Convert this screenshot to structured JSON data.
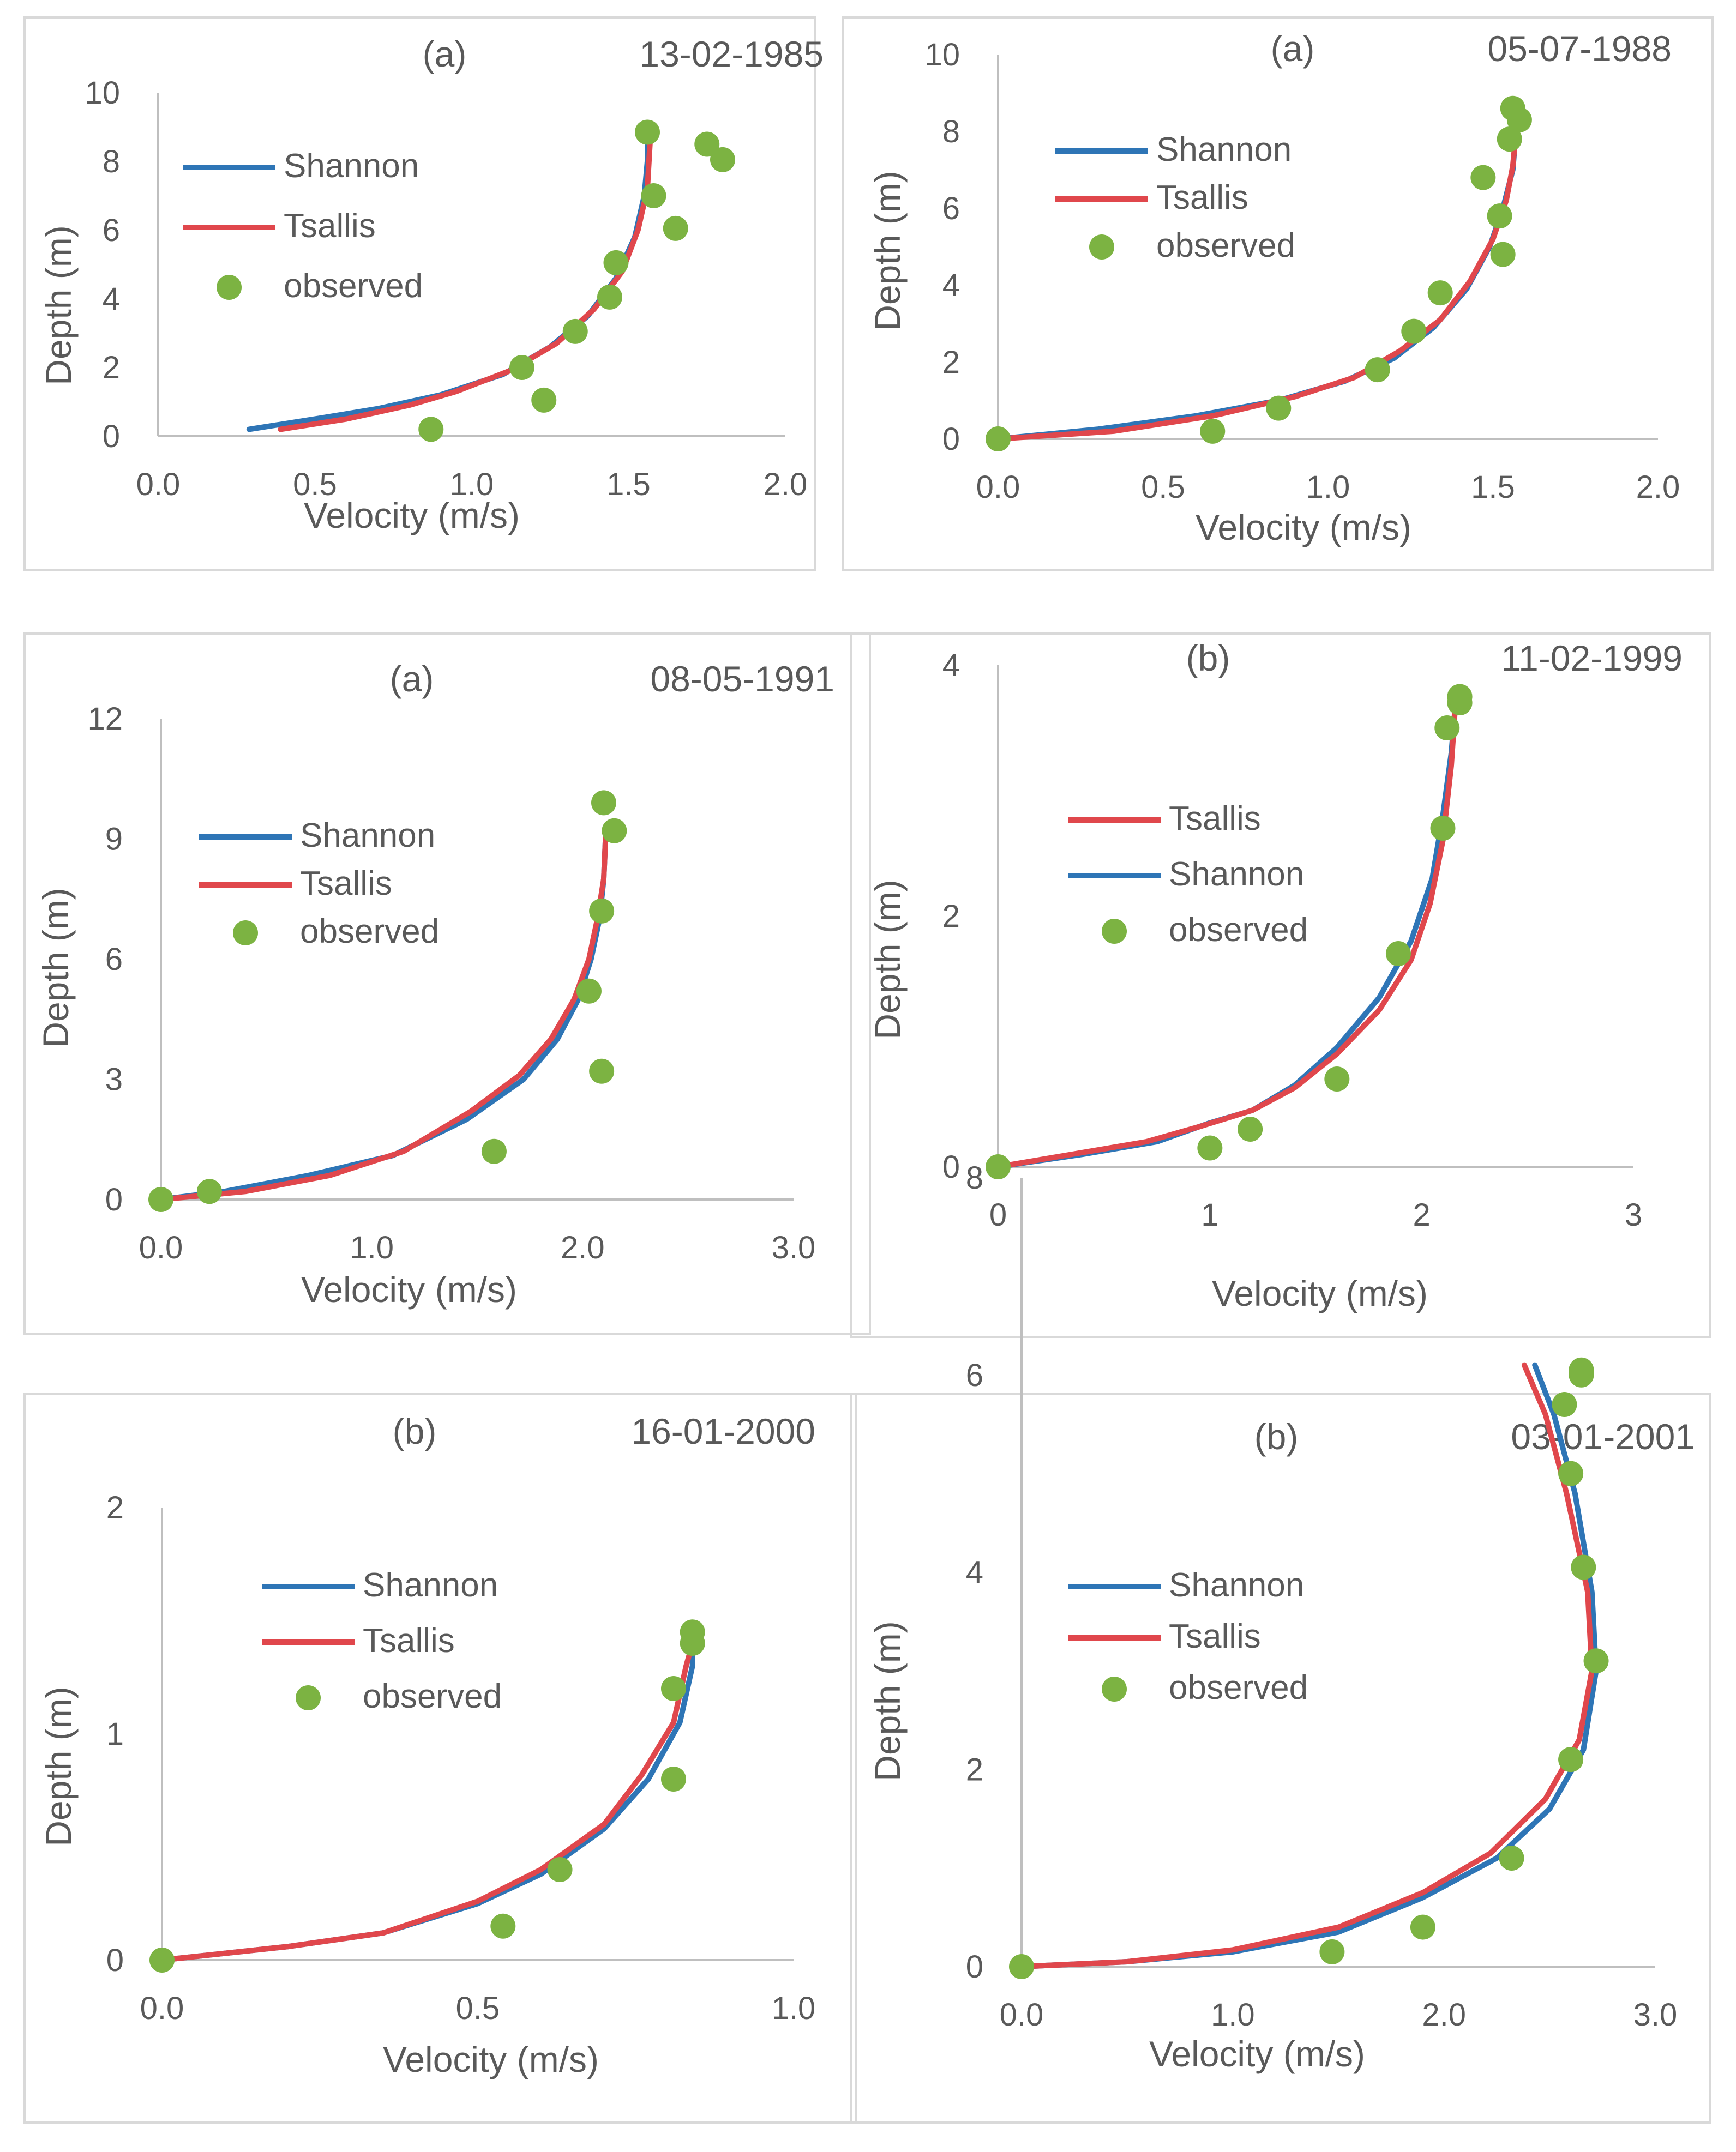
{
  "figure": {
    "colors": {
      "shannon": "#2E75B6",
      "tsallis": "#E0474C",
      "observed": "#7CB342",
      "axis": "#BFBFBF",
      "text": "#595959",
      "border": "#D9D9D9"
    }
  },
  "chart_data": [
    {
      "type": "line",
      "panel_label": "(a)",
      "date": "13-02-1985",
      "xlabel": "Velocity (m/s)",
      "ylabel": "Depth (m)",
      "xlim": [
        0,
        2
      ],
      "ylim": [
        0,
        10
      ],
      "xticks": [
        "0.0",
        "0.5",
        "1.0",
        "1.5",
        "2.0"
      ],
      "yticks": [
        "0",
        "2",
        "4",
        "6",
        "8",
        "10"
      ],
      "legend": [
        "Shannon",
        "Tsallis",
        "observed"
      ],
      "series": [
        {
          "name": "Shannon",
          "key": "shannon",
          "points": [
            [
              0.29,
              0.2
            ],
            [
              0.5,
              0.5
            ],
            [
              0.7,
              0.8
            ],
            [
              0.9,
              1.2
            ],
            [
              1.1,
              1.8
            ],
            [
              1.25,
              2.6
            ],
            [
              1.37,
              3.5
            ],
            [
              1.46,
              4.6
            ],
            [
              1.52,
              5.8
            ],
            [
              1.55,
              7.0
            ],
            [
              1.56,
              8.0
            ],
            [
              1.56,
              8.8
            ]
          ]
        },
        {
          "name": "Tsallis",
          "key": "tsallis",
          "points": [
            [
              0.39,
              0.2
            ],
            [
              0.6,
              0.5
            ],
            [
              0.8,
              0.9
            ],
            [
              0.95,
              1.3
            ],
            [
              1.12,
              1.9
            ],
            [
              1.27,
              2.7
            ],
            [
              1.39,
              3.7
            ],
            [
              1.48,
              4.8
            ],
            [
              1.53,
              6.0
            ],
            [
              1.56,
              7.2
            ],
            [
              1.57,
              8.8
            ]
          ]
        }
      ],
      "observed": [
        [
          0.87,
          0.2
        ],
        [
          1.23,
          1.05
        ],
        [
          1.16,
          2.0
        ],
        [
          1.33,
          3.05
        ],
        [
          1.44,
          4.05
        ],
        [
          1.46,
          5.05
        ],
        [
          1.58,
          7.0
        ],
        [
          1.65,
          6.05
        ],
        [
          1.56,
          8.85
        ],
        [
          1.75,
          8.5
        ],
        [
          1.8,
          8.05
        ]
      ]
    },
    {
      "type": "line",
      "panel_label": "(a)",
      "date": "05-07-1988",
      "xlabel": "Velocity (m/s)",
      "ylabel": "Depth (m)",
      "xlim": [
        0,
        2
      ],
      "ylim": [
        0,
        10
      ],
      "xticks": [
        "0.0",
        "0.5",
        "1.0",
        "1.5",
        "2.0"
      ],
      "yticks": [
        "0",
        "2",
        "4",
        "6",
        "8",
        "10"
      ],
      "legend": [
        "Shannon",
        "Tsallis",
        "observed"
      ],
      "series": [
        {
          "name": "Shannon",
          "key": "shannon",
          "points": [
            [
              0,
              0
            ],
            [
              0.3,
              0.25
            ],
            [
              0.6,
              0.6
            ],
            [
              0.85,
              1.0
            ],
            [
              1.05,
              1.5
            ],
            [
              1.2,
              2.1
            ],
            [
              1.32,
              2.9
            ],
            [
              1.42,
              3.9
            ],
            [
              1.49,
              5.0
            ],
            [
              1.53,
              6.0
            ],
            [
              1.56,
              7.0
            ],
            [
              1.57,
              8.0
            ],
            [
              1.58,
              8.5
            ]
          ]
        },
        {
          "name": "Tsallis",
          "key": "tsallis",
          "points": [
            [
              0,
              0
            ],
            [
              0.35,
              0.2
            ],
            [
              0.65,
              0.6
            ],
            [
              0.9,
              1.1
            ],
            [
              1.08,
              1.6
            ],
            [
              1.22,
              2.3
            ],
            [
              1.34,
              3.1
            ],
            [
              1.43,
              4.1
            ],
            [
              1.5,
              5.2
            ],
            [
              1.54,
              6.2
            ],
            [
              1.56,
              7.1
            ],
            [
              1.57,
              8.0
            ],
            [
              1.58,
              8.5
            ]
          ]
        }
      ],
      "observed": [
        [
          0,
          0
        ],
        [
          0.65,
          0.2
        ],
        [
          0.85,
          0.8
        ],
        [
          1.15,
          1.8
        ],
        [
          1.26,
          2.8
        ],
        [
          1.34,
          3.8
        ],
        [
          1.47,
          6.8
        ],
        [
          1.52,
          5.8
        ],
        [
          1.53,
          4.8
        ],
        [
          1.55,
          7.8
        ],
        [
          1.58,
          8.3
        ],
        [
          1.56,
          8.6
        ]
      ]
    },
    {
      "type": "line",
      "panel_label": "(a)",
      "date": "08-05-1991",
      "xlabel": "Velocity (m/s)",
      "ylabel": "Depth (m)",
      "xlim": [
        0,
        3
      ],
      "ylim": [
        0,
        12
      ],
      "xticks": [
        "0.0",
        "1.0",
        "2.0",
        "3.0"
      ],
      "yticks": [
        "0",
        "3",
        "6",
        "9",
        "12"
      ],
      "legend": [
        "Shannon",
        "Tsallis",
        "observed"
      ],
      "series": [
        {
          "name": "Shannon",
          "key": "shannon",
          "points": [
            [
              0,
              0
            ],
            [
              0.3,
              0.2
            ],
            [
              0.7,
              0.6
            ],
            [
              1.1,
              1.1
            ],
            [
              1.45,
              2.0
            ],
            [
              1.72,
              3.0
            ],
            [
              1.88,
              4.0
            ],
            [
              1.98,
              5.0
            ],
            [
              2.04,
              6.0
            ],
            [
              2.08,
              7.0
            ],
            [
              2.1,
              8.0
            ],
            [
              2.11,
              9.2
            ]
          ]
        },
        {
          "name": "Tsallis",
          "key": "tsallis",
          "points": [
            [
              0,
              0
            ],
            [
              0.4,
              0.2
            ],
            [
              0.8,
              0.6
            ],
            [
              1.15,
              1.2
            ],
            [
              1.47,
              2.2
            ],
            [
              1.7,
              3.1
            ],
            [
              1.85,
              4.0
            ],
            [
              1.96,
              5.0
            ],
            [
              2.03,
              6.0
            ],
            [
              2.07,
              7.0
            ],
            [
              2.1,
              8.0
            ],
            [
              2.11,
              9.2
            ]
          ]
        }
      ],
      "observed": [
        [
          0,
          0
        ],
        [
          0.23,
          0.2
        ],
        [
          1.58,
          1.2
        ],
        [
          2.09,
          3.2
        ],
        [
          2.03,
          5.2
        ],
        [
          2.09,
          7.2
        ],
        [
          2.15,
          9.2
        ],
        [
          2.1,
          9.9
        ]
      ]
    },
    {
      "type": "line",
      "panel_label": "(b)",
      "date": "11-02-1999",
      "xlabel": "Velocity (m/s)",
      "ylabel": "Depth (m)",
      "xlim": [
        0,
        3
      ],
      "ylim": [
        0,
        4
      ],
      "xticks": [
        "0",
        "1",
        "2",
        "3"
      ],
      "yticks": [
        "0",
        "2",
        "4"
      ],
      "legend": [
        "Shannon",
        "Tsallis",
        "observed"
      ],
      "legend_order": [
        "tsallis",
        "shannon",
        "observed"
      ],
      "series": [
        {
          "name": "Shannon",
          "key": "shannon",
          "points": [
            [
              0,
              0
            ],
            [
              0.4,
              0.1
            ],
            [
              0.75,
              0.2
            ],
            [
              1.0,
              0.35
            ],
            [
              1.2,
              0.45
            ],
            [
              1.4,
              0.65
            ],
            [
              1.6,
              0.95
            ],
            [
              1.8,
              1.35
            ],
            [
              1.95,
              1.8
            ],
            [
              2.05,
              2.3
            ],
            [
              2.1,
              2.8
            ],
            [
              2.14,
              3.3
            ],
            [
              2.16,
              3.7
            ]
          ]
        },
        {
          "name": "Tsallis",
          "key": "tsallis",
          "points": [
            [
              0,
              0
            ],
            [
              0.35,
              0.1
            ],
            [
              0.7,
              0.2
            ],
            [
              0.95,
              0.32
            ],
            [
              1.2,
              0.45
            ],
            [
              1.4,
              0.63
            ],
            [
              1.6,
              0.9
            ],
            [
              1.8,
              1.25
            ],
            [
              1.95,
              1.65
            ],
            [
              2.04,
              2.1
            ],
            [
              2.1,
              2.6
            ],
            [
              2.14,
              3.2
            ],
            [
              2.16,
              3.7
            ]
          ]
        }
      ],
      "observed": [
        [
          0,
          0
        ],
        [
          1.0,
          0.15
        ],
        [
          1.19,
          0.3
        ],
        [
          1.6,
          0.7
        ],
        [
          1.89,
          1.7
        ],
        [
          2.1,
          2.7
        ],
        [
          2.12,
          3.5
        ],
        [
          2.18,
          3.7
        ],
        [
          2.18,
          3.75
        ]
      ]
    },
    {
      "type": "line",
      "panel_label": "(b)",
      "date": "16-01-2000",
      "xlabel": "Velocity (m/s)",
      "ylabel": "Depth (m)",
      "xlim": [
        0,
        1
      ],
      "ylim": [
        0,
        2
      ],
      "xticks": [
        "0.0",
        "0.5",
        "1.0"
      ],
      "yticks": [
        "0",
        "1",
        "2"
      ],
      "legend": [
        "Shannon",
        "Tsallis",
        "observed"
      ],
      "series": [
        {
          "name": "Shannon",
          "key": "shannon",
          "points": [
            [
              0,
              0
            ],
            [
              0.2,
              0.06
            ],
            [
              0.35,
              0.12
            ],
            [
              0.5,
              0.25
            ],
            [
              0.6,
              0.38
            ],
            [
              0.7,
              0.58
            ],
            [
              0.77,
              0.8
            ],
            [
              0.82,
              1.05
            ],
            [
              0.84,
              1.3
            ],
            [
              0.84,
              1.4
            ]
          ]
        },
        {
          "name": "Tsallis",
          "key": "tsallis",
          "points": [
            [
              0,
              0
            ],
            [
              0.2,
              0.06
            ],
            [
              0.35,
              0.12
            ],
            [
              0.5,
              0.26
            ],
            [
              0.6,
              0.4
            ],
            [
              0.7,
              0.6
            ],
            [
              0.76,
              0.82
            ],
            [
              0.81,
              1.05
            ],
            [
              0.83,
              1.3
            ],
            [
              0.84,
              1.4
            ]
          ]
        }
      ],
      "observed": [
        [
          0,
          0
        ],
        [
          0.54,
          0.15
        ],
        [
          0.63,
          0.4
        ],
        [
          0.81,
          0.8
        ],
        [
          0.81,
          1.2
        ],
        [
          0.84,
          1.4
        ],
        [
          0.84,
          1.45
        ]
      ]
    },
    {
      "type": "line",
      "panel_label": "(b)",
      "date": "03-01-2001",
      "xlabel": "Velocity (m/s)",
      "ylabel": "Depth (m)",
      "xlim": [
        0,
        3
      ],
      "ylim": [
        0,
        8
      ],
      "xticks": [
        "0.0",
        "1.0",
        "2.0",
        "3.0"
      ],
      "yticks": [
        "0",
        "2",
        "4",
        "6",
        "8"
      ],
      "legend": [
        "Shannon",
        "Tsallis",
        "observed"
      ],
      "series": [
        {
          "name": "Shannon",
          "key": "shannon",
          "points": [
            [
              0,
              0
            ],
            [
              0.5,
              0.05
            ],
            [
              1.0,
              0.15
            ],
            [
              1.5,
              0.35
            ],
            [
              1.9,
              0.7
            ],
            [
              2.25,
              1.1
            ],
            [
              2.5,
              1.6
            ],
            [
              2.66,
              2.2
            ],
            [
              2.72,
              3.0
            ],
            [
              2.7,
              3.8
            ],
            [
              2.62,
              4.8
            ],
            [
              2.52,
              5.6
            ],
            [
              2.43,
              6.1
            ]
          ]
        },
        {
          "name": "Tsallis",
          "key": "tsallis",
          "points": [
            [
              0,
              0
            ],
            [
              0.5,
              0.05
            ],
            [
              1.0,
              0.17
            ],
            [
              1.5,
              0.4
            ],
            [
              1.9,
              0.75
            ],
            [
              2.22,
              1.15
            ],
            [
              2.48,
              1.7
            ],
            [
              2.64,
              2.3
            ],
            [
              2.7,
              3.0
            ],
            [
              2.68,
              3.8
            ],
            [
              2.58,
              4.8
            ],
            [
              2.48,
              5.6
            ],
            [
              2.38,
              6.1
            ]
          ]
        }
      ],
      "observed": [
        [
          0,
          0
        ],
        [
          1.47,
          0.15
        ],
        [
          1.9,
          0.4
        ],
        [
          2.32,
          1.1
        ],
        [
          2.6,
          2.1
        ],
        [
          2.72,
          3.1
        ],
        [
          2.66,
          4.05
        ],
        [
          2.6,
          5.0
        ],
        [
          2.57,
          5.7
        ],
        [
          2.65,
          6.0
        ],
        [
          2.65,
          6.05
        ]
      ]
    }
  ]
}
